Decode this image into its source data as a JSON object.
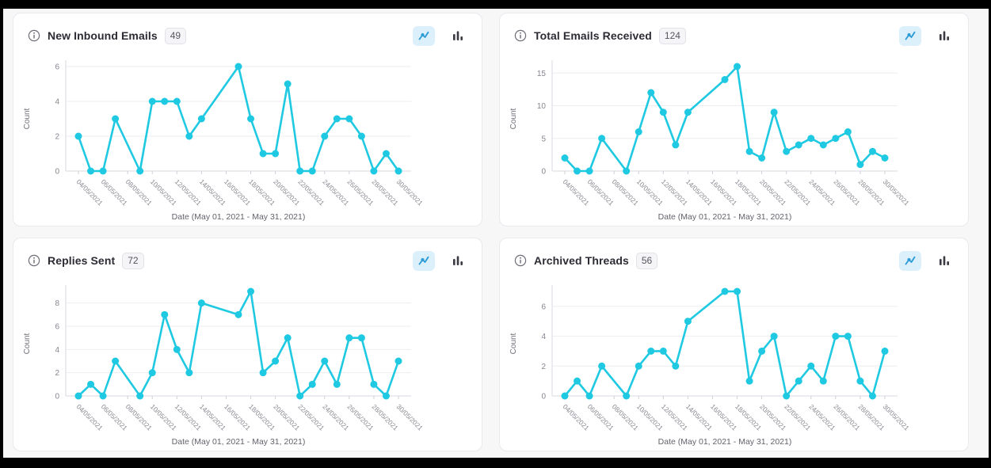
{
  "page": {
    "background": "#f7f7f8",
    "frame_color": "#000000",
    "card_background": "#ffffff",
    "accent": "#1fc9e2"
  },
  "card_chrome": {
    "info_icon": "info-circle-icon",
    "line_toggle_icon": "line-chart-icon",
    "bar_toggle_icon": "bar-chart-icon",
    "active_toggle": "line"
  },
  "chart_data": [
    {
      "type": "line",
      "title": "New Inbound Emails",
      "total_badge": 49,
      "ylabel": "Count",
      "xlabel": "Date (May 01, 2021 - May 31, 2021)",
      "line_color": "#1fc9e2",
      "grid": "horizontal",
      "legend": "none",
      "y_ticks": [
        0,
        2,
        4,
        6
      ],
      "y_domain_max": 6,
      "x_tick_labels": [
        "04/05/2021",
        "06/05/2021",
        "08/05/2021",
        "10/05/2021",
        "12/05/2021",
        "14/05/2021",
        "16/05/2021",
        "18/05/2021",
        "20/05/2021",
        "22/05/2021",
        "24/05/2021",
        "26/05/2021",
        "28/05/2021",
        "30/05/2021"
      ],
      "dates": [
        "04/05/2021",
        "05/05/2021",
        "06/05/2021",
        "07/05/2021",
        "09/05/2021",
        "10/05/2021",
        "11/05/2021",
        "12/05/2021",
        "13/05/2021",
        "14/05/2021",
        "17/05/2021",
        "18/05/2021",
        "19/05/2021",
        "20/05/2021",
        "21/05/2021",
        "22/05/2021",
        "23/05/2021",
        "24/05/2021",
        "25/05/2021",
        "26/05/2021",
        "27/05/2021",
        "28/05/2021",
        "29/05/2021",
        "30/05/2021"
      ],
      "day_index": [
        0,
        1,
        2,
        3,
        5,
        6,
        7,
        8,
        9,
        10,
        13,
        14,
        15,
        16,
        17,
        18,
        19,
        20,
        21,
        22,
        23,
        24,
        25,
        26
      ],
      "values": [
        2,
        0,
        0,
        3,
        0,
        4,
        4,
        4,
        2,
        3,
        6,
        3,
        1,
        1,
        5,
        0,
        0,
        2,
        3,
        3,
        2,
        0,
        1,
        0
      ]
    },
    {
      "type": "line",
      "title": "Total Emails Received",
      "total_badge": 124,
      "ylabel": "Count",
      "xlabel": "Date (May 01, 2021 - May 31, 2021)",
      "line_color": "#1fc9e2",
      "grid": "horizontal",
      "legend": "none",
      "y_ticks": [
        0,
        5,
        10,
        15
      ],
      "y_domain_max": 16,
      "x_tick_labels": [
        "04/05/2021",
        "06/05/2021",
        "08/05/2021",
        "10/05/2021",
        "12/05/2021",
        "14/05/2021",
        "16/05/2021",
        "18/05/2021",
        "20/05/2021",
        "22/05/2021",
        "24/05/2021",
        "26/05/2021",
        "28/05/2021",
        "30/05/2021"
      ],
      "dates": [
        "04/05/2021",
        "05/05/2021",
        "06/05/2021",
        "07/05/2021",
        "09/05/2021",
        "10/05/2021",
        "11/05/2021",
        "12/05/2021",
        "13/05/2021",
        "14/05/2021",
        "17/05/2021",
        "18/05/2021",
        "19/05/2021",
        "20/05/2021",
        "21/05/2021",
        "22/05/2021",
        "23/05/2021",
        "24/05/2021",
        "25/05/2021",
        "26/05/2021",
        "27/05/2021",
        "28/05/2021",
        "29/05/2021",
        "30/05/2021"
      ],
      "day_index": [
        0,
        1,
        2,
        3,
        5,
        6,
        7,
        8,
        9,
        10,
        13,
        14,
        15,
        16,
        17,
        18,
        19,
        20,
        21,
        22,
        23,
        24,
        25,
        26
      ],
      "values": [
        2,
        0,
        0,
        5,
        0,
        6,
        12,
        9,
        4,
        9,
        14,
        16,
        3,
        2,
        9,
        3,
        4,
        5,
        4,
        5,
        6,
        1,
        3,
        2
      ]
    },
    {
      "type": "line",
      "title": "Replies Sent",
      "total_badge": 72,
      "ylabel": "Count",
      "xlabel": "Date (May 01, 2021 - May 31, 2021)",
      "line_color": "#1fc9e2",
      "grid": "horizontal",
      "legend": "none",
      "y_ticks": [
        0,
        2,
        4,
        6,
        8
      ],
      "y_domain_max": 9,
      "x_tick_labels": [
        "04/05/2021",
        "06/05/2021",
        "08/05/2021",
        "10/05/2021",
        "12/05/2021",
        "14/05/2021",
        "16/05/2021",
        "18/05/2021",
        "20/05/2021",
        "22/05/2021",
        "24/05/2021",
        "26/05/2021",
        "28/05/2021",
        "30/05/2021"
      ],
      "dates": [
        "04/05/2021",
        "05/05/2021",
        "06/05/2021",
        "07/05/2021",
        "09/05/2021",
        "10/05/2021",
        "11/05/2021",
        "12/05/2021",
        "13/05/2021",
        "14/05/2021",
        "17/05/2021",
        "18/05/2021",
        "19/05/2021",
        "20/05/2021",
        "21/05/2021",
        "22/05/2021",
        "23/05/2021",
        "24/05/2021",
        "25/05/2021",
        "26/05/2021",
        "27/05/2021",
        "28/05/2021",
        "29/05/2021",
        "30/05/2021"
      ],
      "day_index": [
        0,
        1,
        2,
        3,
        5,
        6,
        7,
        8,
        9,
        10,
        13,
        14,
        15,
        16,
        17,
        18,
        19,
        20,
        21,
        22,
        23,
        24,
        25,
        26
      ],
      "values": [
        0,
        1,
        0,
        3,
        0,
        2,
        7,
        4,
        2,
        8,
        7,
        9,
        2,
        3,
        5,
        0,
        1,
        3,
        1,
        5,
        5,
        1,
        0,
        3
      ]
    },
    {
      "type": "line",
      "title": "Archived Threads",
      "total_badge": 56,
      "ylabel": "Count",
      "xlabel": "Date (May 01, 2021 - May 31, 2021)",
      "line_color": "#1fc9e2",
      "grid": "horizontal",
      "legend": "none",
      "y_ticks": [
        0,
        2,
        4,
        6
      ],
      "y_domain_max": 7,
      "x_tick_labels": [
        "04/05/2021",
        "06/05/2021",
        "08/05/2021",
        "10/05/2021",
        "12/05/2021",
        "14/05/2021",
        "16/05/2021",
        "18/05/2021",
        "20/05/2021",
        "22/05/2021",
        "24/05/2021",
        "26/05/2021",
        "28/05/2021",
        "30/05/2021"
      ],
      "dates": [
        "04/05/2021",
        "05/05/2021",
        "06/05/2021",
        "07/05/2021",
        "09/05/2021",
        "10/05/2021",
        "11/05/2021",
        "12/05/2021",
        "13/05/2021",
        "14/05/2021",
        "17/05/2021",
        "18/05/2021",
        "19/05/2021",
        "20/05/2021",
        "21/05/2021",
        "22/05/2021",
        "23/05/2021",
        "24/05/2021",
        "25/05/2021",
        "26/05/2021",
        "27/05/2021",
        "28/05/2021",
        "29/05/2021",
        "30/05/2021"
      ],
      "day_index": [
        0,
        1,
        2,
        3,
        5,
        6,
        7,
        8,
        9,
        10,
        13,
        14,
        15,
        16,
        17,
        18,
        19,
        20,
        21,
        22,
        23,
        24,
        25,
        26
      ],
      "values": [
        0,
        1,
        0,
        2,
        0,
        2,
        3,
        3,
        2,
        5,
        7,
        7,
        1,
        3,
        4,
        0,
        1,
        2,
        1,
        4,
        4,
        1,
        0,
        3
      ]
    }
  ]
}
